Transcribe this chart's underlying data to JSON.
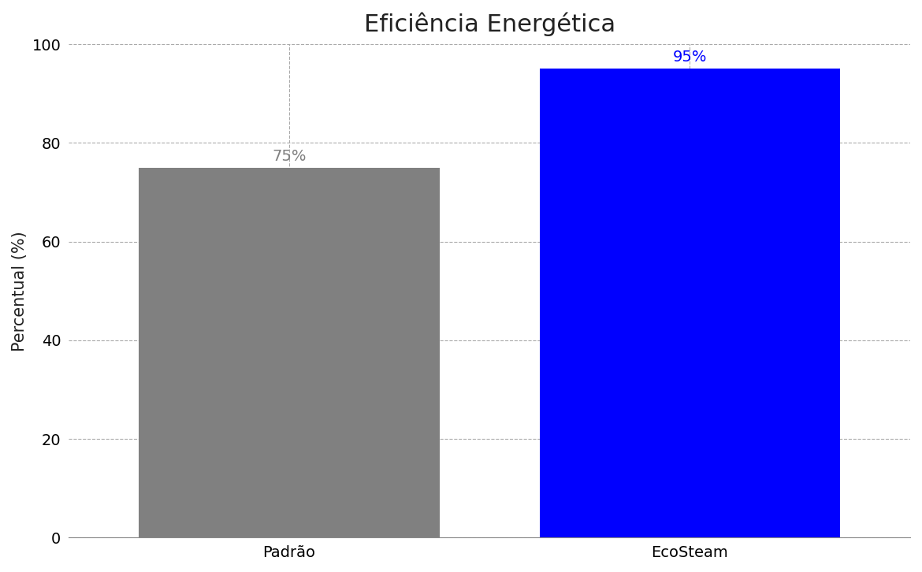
{
  "categories": [
    "Padrão",
    "EcoSteam"
  ],
  "values": [
    75,
    95
  ],
  "bar_colors": [
    "#808080",
    "#0000ff"
  ],
  "label_colors": [
    "#808080",
    "#0000ff"
  ],
  "labels": [
    "75%",
    "95%"
  ],
  "title": "Eficiência Energética",
  "ylabel": "Percentual (%)",
  "ylim": [
    0,
    100
  ],
  "yticks": [
    0,
    20,
    40,
    60,
    80,
    100
  ],
  "title_fontsize": 22,
  "axis_label_fontsize": 15,
  "tick_fontsize": 14,
  "bar_label_fontsize": 14,
  "background_color": "#ffffff",
  "grid_color": "#aaaaaa",
  "bar_width": 0.75
}
